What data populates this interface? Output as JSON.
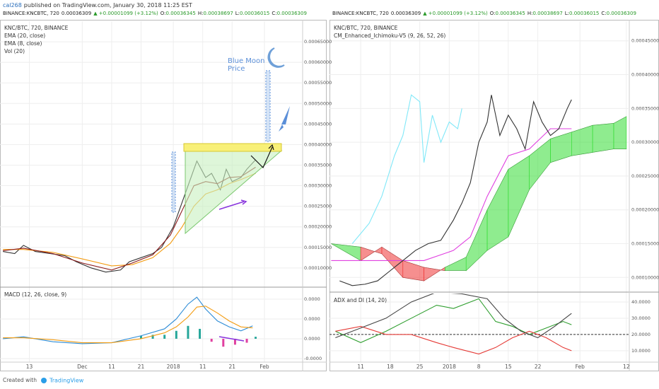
{
  "header": {
    "author": "cal268",
    "published": "published on TradingView.com, January 30, 2018 11:25 EST"
  },
  "panes": [
    {
      "quote": {
        "symbol": "BINANCE:KNCBTC, 720",
        "last": "0.00036309",
        "change": "▲ +0.00001099 (+3.12%)",
        "ohlc": [
          [
            "O:",
            "0.00036345"
          ],
          [
            "H:",
            "0.00038697"
          ],
          [
            "L:",
            "0.00036015"
          ],
          [
            "C:",
            "0.00036309"
          ]
        ]
      }
    },
    {
      "quote": {
        "symbol": "BINANCE:KNCBTC, 720",
        "last": "0.00036309",
        "change": "▲ +0.00001099 (+3.12%)",
        "ohlc": [
          [
            "O:",
            "0.00036345"
          ],
          [
            "H:",
            "0.00038697"
          ],
          [
            "L:",
            "0.00036015"
          ],
          [
            "C:",
            "0.00036309"
          ]
        ]
      }
    }
  ],
  "annotations": {
    "blue_moon": [
      "Blue Moon",
      "Price"
    ]
  },
  "footer": {
    "created": "Created with",
    "brand": "TradingView"
  },
  "chart_data": [
    {
      "type": "line",
      "xlim": [
        2,
        105
      ],
      "ylim": [
        5.5e-05,
        0.0007
      ],
      "yticks": [
        {
          "value": 0.00065,
          "label": "0.00065000"
        },
        {
          "value": 0.0006,
          "label": "0.00060000"
        },
        {
          "value": 0.00055,
          "label": "0.00055000"
        },
        {
          "value": 0.0005,
          "label": "0.00050000"
        },
        {
          "value": 0.00045,
          "label": "0.00045000"
        },
        {
          "value": 0.0004,
          "label": "0.00040000"
        },
        {
          "value": 0.00035,
          "label": "0.00035000"
        },
        {
          "value": 0.0003,
          "label": "0.00030000"
        },
        {
          "value": 0.00025,
          "label": "0.00025000"
        },
        {
          "value": 0.0002,
          "label": "0.00020000"
        },
        {
          "value": 0.00015,
          "label": "0.00015000"
        },
        {
          "value": 0.0001,
          "label": "0.00010000"
        }
      ],
      "series": [
        {
          "name": "KNC/BTC, 720, BINANCE",
          "color": "#333333",
          "x": [
            3,
            7,
            10,
            14,
            19,
            24,
            28,
            33,
            38,
            43,
            46,
            50,
            54,
            57,
            61,
            63,
            65,
            67,
            69,
            72,
            74,
            77,
            79,
            81,
            84,
            86,
            89
          ],
          "values": [
            0.00014,
            0.000135,
            0.000155,
            0.00014,
            0.000135,
            0.00013,
            0.000115,
            0.0001,
            9e-05,
            9.5e-05,
            0.000115,
            0.000125,
            0.000135,
            0.00015,
            0.0002,
            0.00024,
            0.00028,
            0.00032,
            0.00036,
            0.00032,
            0.00033,
            0.00029,
            0.00034,
            0.00031,
            0.00032,
            0.00034,
            0.000363
          ]
        },
        {
          "name": "EMA (20, close)",
          "color": "#f39c12",
          "x": [
            3,
            10,
            20,
            30,
            40,
            47,
            54,
            60,
            64,
            68,
            72,
            76,
            80,
            84,
            89
          ],
          "values": [
            0.000145,
            0.000145,
            0.000138,
            0.000122,
            0.000105,
            0.000108,
            0.000125,
            0.00016,
            0.0002,
            0.00025,
            0.00028,
            0.00029,
            0.000305,
            0.000315,
            0.00033
          ]
        },
        {
          "name": "EMA (8, close)",
          "color": "#8b1a1a",
          "x": [
            3,
            10,
            20,
            30,
            40,
            47,
            54,
            60,
            64,
            68,
            72,
            76,
            80,
            84,
            89
          ],
          "values": [
            0.000142,
            0.000148,
            0.000135,
            0.000112,
            9.5e-05,
            0.000112,
            0.000132,
            0.00018,
            0.00024,
            0.0003,
            0.00031,
            0.000305,
            0.00032,
            0.000322,
            0.000345
          ]
        }
      ],
      "indicators": [
        "Vol (20)"
      ]
    },
    {
      "type": "line",
      "xlim": [
        2,
        105
      ],
      "ylim": [
        -2.36e-05,
        5.14e-05
      ],
      "yticks": [
        {
          "value": 4e-05,
          "label": "0.0000"
        },
        {
          "value": 2e-05,
          "label": "0.0000"
        },
        {
          "value": 0,
          "label": "0.0000"
        },
        {
          "value": -2e-05,
          "label": "-0.0000"
        }
      ],
      "xticks": [
        {
          "value": 12,
          "label": "13"
        },
        {
          "value": 30,
          "label": "Dec"
        },
        {
          "value": 40,
          "label": "11"
        },
        {
          "value": 50,
          "label": "21"
        },
        {
          "value": 61,
          "label": "2018"
        },
        {
          "value": 71,
          "label": "11"
        },
        {
          "value": 81,
          "label": "21"
        },
        {
          "value": 92,
          "label": "Feb"
        }
      ],
      "histogram": {
        "x": [
          50,
          54,
          58,
          62,
          66,
          70,
          74,
          78,
          82,
          86,
          89
        ],
        "values": [
          3e-06,
          4e-06,
          4e-06,
          8e-06,
          1.3e-05,
          1e-05,
          -3e-06,
          -8e-06,
          -6e-06,
          -4e-06,
          2e-06
        ],
        "colors": [
          "#26a69a",
          "#e040a0"
        ]
      },
      "series": [
        {
          "color": "#2d8cd6",
          "x": [
            3,
            10,
            20,
            30,
            40,
            50,
            58,
            62,
            66,
            69,
            72,
            76,
            80,
            84,
            88
          ],
          "values": [
            0,
            2e-06,
            -3e-06,
            -5e-06,
            -4e-06,
            3e-06,
            1e-05,
            2e-05,
            3.5e-05,
            4.2e-05,
            3e-05,
            1.8e-05,
            1.2e-05,
            8e-06,
            1.3e-05
          ]
        },
        {
          "color": "#f39c12",
          "x": [
            3,
            10,
            20,
            30,
            40,
            50,
            58,
            62,
            66,
            69,
            72,
            76,
            80,
            84,
            88
          ],
          "values": [
            1e-06,
            1e-06,
            -1e-06,
            -4e-06,
            -4e-06,
            0,
            6e-06,
            1.2e-05,
            2.2e-05,
            3.2e-05,
            3.3e-05,
            2.6e-05,
            1.8e-05,
            1.2e-05,
            1.1e-05
          ]
        }
      ],
      "indicators": [
        "MACD (12, 26, close, 9)"
      ]
    },
    {
      "type": "line",
      "xlim": [
        32.6,
        103.7
      ],
      "ylim": [
        7.94e-05,
        0.000479
      ],
      "yticks": [
        {
          "value": 0.00045,
          "label": "0.00045000"
        },
        {
          "value": 0.0004,
          "label": "0.00040000"
        },
        {
          "value": 0.00035,
          "label": "0.00035000"
        },
        {
          "value": 0.0003,
          "label": "0.00030000"
        },
        {
          "value": 0.00025,
          "label": "0.00025000"
        },
        {
          "value": 0.0002,
          "label": "0.00020000"
        },
        {
          "value": 0.00015,
          "label": "0.00015000"
        },
        {
          "value": 0.0001,
          "label": "0.00010000"
        }
      ],
      "cloud": {
        "x": [
          33,
          40,
          45,
          50,
          55,
          60,
          65,
          70,
          75,
          80,
          85,
          90,
          95,
          100,
          103
        ],
        "span_a": [
          0.00015,
          0.000145,
          0.000135,
          0.0001,
          9.5e-05,
          0.000115,
          0.00013,
          0.0002,
          0.00026,
          0.00028,
          0.000305,
          0.000315,
          0.000325,
          0.000328,
          0.000338
        ],
        "span_b": [
          0.00015,
          0.000125,
          0.000145,
          0.000125,
          0.000115,
          0.00011,
          0.00011,
          0.00014,
          0.00016,
          0.00023,
          0.00027,
          0.00028,
          0.000285,
          0.00029,
          0.00029
        ],
        "colors": [
          "#33dd33",
          "#ee3333"
        ]
      },
      "series": [
        {
          "color": "#80e8f8",
          "x": [
            38,
            42,
            45,
            48,
            50,
            52,
            54,
            55,
            57,
            59,
            61,
            63,
            64
          ],
          "values": [
            0.00015,
            0.00018,
            0.00022,
            0.00028,
            0.00031,
            0.00037,
            0.00036,
            0.00027,
            0.00034,
            0.0003,
            0.00033,
            0.00032,
            0.00035
          ]
        },
        {
          "color": "#e040e0",
          "x": [
            33,
            45,
            55,
            62,
            66,
            70,
            75,
            80,
            85,
            90
          ],
          "values": [
            0.000125,
            0.000125,
            0.000125,
            0.00014,
            0.00016,
            0.00022,
            0.00028,
            0.00029,
            0.00032,
            0.00032
          ]
        },
        {
          "name": "KNC/BTC, 720, BINANCE",
          "color": "#333333",
          "x": [
            35,
            38,
            41,
            44,
            47,
            50,
            53,
            56,
            59,
            62,
            64,
            66,
            68,
            70,
            71,
            73,
            75,
            77,
            79,
            81,
            83,
            85,
            87,
            89,
            90
          ],
          "values": [
            9.5e-05,
            8.8e-05,
            9e-05,
            9.5e-05,
            0.00011,
            0.000125,
            0.00014,
            0.00015,
            0.000155,
            0.000185,
            0.00021,
            0.00024,
            0.0003,
            0.00033,
            0.00037,
            0.00031,
            0.00034,
            0.00032,
            0.00029,
            0.00036,
            0.00033,
            0.00031,
            0.00032,
            0.00035,
            0.000363
          ]
        }
      ],
      "indicators": [
        "CM_Enhanced_Ichimoku-V5 (9, 26, 52, 26)"
      ]
    },
    {
      "type": "line",
      "xlim": [
        32.6,
        103.7
      ],
      "ylim": [
        3,
        45.2
      ],
      "yticks": [
        {
          "value": 40,
          "label": "40.0000"
        },
        {
          "value": 30,
          "label": "30.0000"
        },
        {
          "value": 20,
          "label": "20.0000"
        },
        {
          "value": 10,
          "label": "10.0000"
        }
      ],
      "xticks": [
        {
          "value": 40,
          "label": "11"
        },
        {
          "value": 47,
          "label": "18"
        },
        {
          "value": 54,
          "label": "25"
        },
        {
          "value": 61,
          "label": "2018"
        },
        {
          "value": 68,
          "label": "8"
        },
        {
          "value": 75,
          "label": "15"
        },
        {
          "value": 82,
          "label": "22"
        },
        {
          "value": 92,
          "label": "Feb"
        },
        {
          "value": 103,
          "label": "12"
        }
      ],
      "hline": 20,
      "series": [
        {
          "color": "#2e9e2e",
          "x": [
            34,
            40,
            46,
            52,
            58,
            62,
            68,
            72,
            76,
            80,
            84,
            88,
            90
          ],
          "values": [
            22,
            15,
            22,
            30,
            38,
            36,
            42,
            28,
            25,
            20,
            24,
            28,
            26
          ]
        },
        {
          "color": "#e53935",
          "x": [
            34,
            40,
            46,
            52,
            58,
            62,
            68,
            72,
            76,
            80,
            84,
            88,
            90
          ],
          "values": [
            22,
            25,
            20,
            20,
            15,
            12,
            8,
            12,
            18,
            22,
            18,
            12,
            10
          ]
        },
        {
          "color": "#444444",
          "x": [
            34,
            40,
            46,
            52,
            58,
            64,
            70,
            74,
            78,
            82,
            86,
            90
          ],
          "values": [
            18,
            24,
            30,
            40,
            46,
            45,
            42,
            30,
            22,
            18,
            25,
            33
          ]
        }
      ],
      "indicators": [
        "ADX and DI (14, 20)"
      ]
    }
  ]
}
